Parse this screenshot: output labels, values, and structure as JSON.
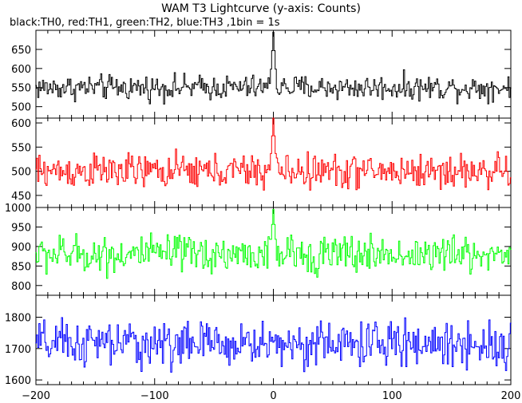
{
  "title": "WAM T3 Lightcurve (y-axis: Counts)",
  "subtitle": "black:TH0, red:TH1, green:TH2, blue:TH3 ,1bin = 1s",
  "chart_data": [
    {
      "type": "line",
      "series_name": "TH0",
      "color": "#000000",
      "xlim": [
        -200,
        200
      ],
      "ylim": [
        470,
        700
      ],
      "yticks": [
        500,
        550,
        600,
        650
      ],
      "baseline": 550,
      "noise": 20,
      "peak": {
        "x": 0,
        "value": 695
      }
    },
    {
      "type": "line",
      "series_name": "TH1",
      "color": "#ff0000",
      "xlim": [
        -200,
        200
      ],
      "ylim": [
        425,
        610
      ],
      "yticks": [
        450,
        500,
        550,
        600
      ],
      "baseline": 500,
      "noise": 22,
      "peak": {
        "x": 0,
        "value": 610
      }
    },
    {
      "type": "line",
      "series_name": "TH2",
      "color": "#00ff00",
      "xlim": [
        -200,
        200
      ],
      "ylim": [
        775,
        1000
      ],
      "yticks": [
        800,
        850,
        900,
        950,
        1000
      ],
      "baseline": 880,
      "noise": 30,
      "peak": {
        "x": 0,
        "value": 995
      }
    },
    {
      "type": "line",
      "series_name": "TH3",
      "color": "#0000ff",
      "xlim": [
        -200,
        200
      ],
      "ylim": [
        1585,
        1870
      ],
      "yticks": [
        1600,
        1700,
        1800
      ],
      "baseline": 1715,
      "noise": 45,
      "peak": {
        "x": 0,
        "value": 1720
      }
    }
  ],
  "xticks": [
    -200,
    -100,
    0,
    100,
    200
  ],
  "xtick_labels": [
    "−200",
    "−100",
    "0",
    "100",
    "200"
  ]
}
